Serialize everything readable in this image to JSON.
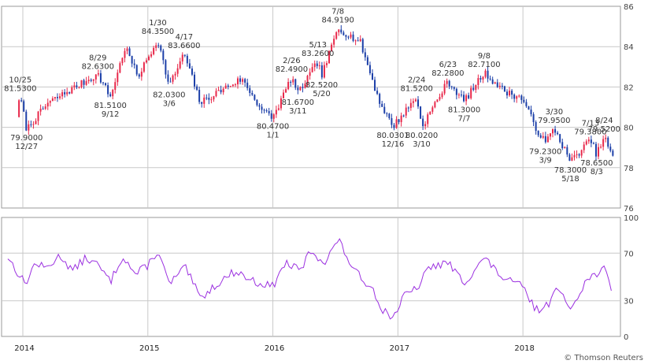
{
  "colors": {
    "up": "#e8284a",
    "down": "#1c3fa8",
    "indicator": "#9b30e0",
    "grid": "#c8c8c8",
    "frame": "#9a9a9a"
  },
  "credit": "© Thomson Reuters",
  "chart_data": [
    {
      "type": "candlestick",
      "title": "",
      "ylim": [
        76,
        86
      ],
      "y_ticks": [
        "76",
        "78",
        "80",
        "82",
        "84",
        "86"
      ],
      "x_labels": [
        "2014",
        "2015",
        "2016",
        "2017",
        "2018"
      ],
      "grid": true,
      "anchors": [
        {
          "t": 2013.95,
          "v": 80.6
        },
        {
          "t": 2013.98,
          "v": 81.53
        },
        {
          "t": 2014.03,
          "v": 79.9
        },
        {
          "t": 2014.2,
          "v": 81.2
        },
        {
          "t": 2014.45,
          "v": 82.1
        },
        {
          "t": 2014.6,
          "v": 82.63
        },
        {
          "t": 2014.7,
          "v": 81.51
        },
        {
          "t": 2014.82,
          "v": 84.0
        },
        {
          "t": 2014.92,
          "v": 82.5
        },
        {
          "t": 2015.08,
          "v": 84.35
        },
        {
          "t": 2015.17,
          "v": 82.03
        },
        {
          "t": 2015.29,
          "v": 83.66
        },
        {
          "t": 2015.42,
          "v": 81.2
        },
        {
          "t": 2015.6,
          "v": 81.9
        },
        {
          "t": 2015.75,
          "v": 82.4
        },
        {
          "t": 2015.92,
          "v": 80.8
        },
        {
          "t": 2016.0,
          "v": 80.47
        },
        {
          "t": 2016.15,
          "v": 82.49
        },
        {
          "t": 2016.2,
          "v": 81.67
        },
        {
          "t": 2016.36,
          "v": 83.26
        },
        {
          "t": 2016.39,
          "v": 82.52
        },
        {
          "t": 2016.52,
          "v": 84.919
        },
        {
          "t": 2016.7,
          "v": 84.2
        },
        {
          "t": 2016.85,
          "v": 81.3
        },
        {
          "t": 2016.96,
          "v": 80.03
        },
        {
          "t": 2017.15,
          "v": 81.52
        },
        {
          "t": 2017.19,
          "v": 80.02
        },
        {
          "t": 2017.4,
          "v": 82.28
        },
        {
          "t": 2017.53,
          "v": 81.3
        },
        {
          "t": 2017.69,
          "v": 82.71
        },
        {
          "t": 2017.85,
          "v": 81.8
        },
        {
          "t": 2018.0,
          "v": 81.4
        },
        {
          "t": 2018.1,
          "v": 80.0
        },
        {
          "t": 2018.18,
          "v": 79.23
        },
        {
          "t": 2018.25,
          "v": 79.95
        },
        {
          "t": 2018.38,
          "v": 78.3
        },
        {
          "t": 2018.54,
          "v": 79.38
        },
        {
          "t": 2018.59,
          "v": 78.65
        },
        {
          "t": 2018.65,
          "v": 79.52
        },
        {
          "t": 2018.72,
          "v": 78.5
        }
      ],
      "annotations": [
        {
          "date": "10/25",
          "value": "81.5300",
          "t": 2013.98,
          "v": 81.53
        },
        {
          "date": "12/27",
          "value": "79.9000",
          "t": 2014.03,
          "v": 79.9
        },
        {
          "date": "8/29",
          "value": "82.6300",
          "t": 2014.6,
          "v": 82.63
        },
        {
          "date": "9/12",
          "value": "81.5100",
          "t": 2014.7,
          "v": 81.51
        },
        {
          "date": "1/30",
          "value": "84.3500",
          "t": 2015.08,
          "v": 84.35
        },
        {
          "date": "3/6",
          "value": "82.0300",
          "t": 2015.17,
          "v": 82.03
        },
        {
          "date": "4/17",
          "value": "83.6600",
          "t": 2015.29,
          "v": 83.66
        },
        {
          "date": "1/1",
          "value": "80.4700",
          "t": 2016.0,
          "v": 80.47
        },
        {
          "date": "2/26",
          "value": "82.4900",
          "t": 2016.15,
          "v": 82.49
        },
        {
          "date": "3/11",
          "value": "81.6700",
          "t": 2016.2,
          "v": 81.67
        },
        {
          "date": "5/13",
          "value": "83.2600",
          "t": 2016.36,
          "v": 83.26
        },
        {
          "date": "5/20",
          "value": "82.5200",
          "t": 2016.39,
          "v": 82.52
        },
        {
          "date": "7/8",
          "value": "84.9190",
          "t": 2016.52,
          "v": 84.919
        },
        {
          "date": "12/16",
          "value": "80.0301",
          "t": 2016.96,
          "v": 80.03
        },
        {
          "date": "2/24",
          "value": "81.5200",
          "t": 2017.15,
          "v": 81.52
        },
        {
          "date": "3/10",
          "value": "80.0200",
          "t": 2017.19,
          "v": 80.02
        },
        {
          "date": "6/23",
          "value": "82.2800",
          "t": 2017.4,
          "v": 82.28
        },
        {
          "date": "7/7",
          "value": "81.3000",
          "t": 2017.53,
          "v": 81.3
        },
        {
          "date": "9/8",
          "value": "82.7100",
          "t": 2017.69,
          "v": 82.71
        },
        {
          "date": "3/9",
          "value": "79.2300",
          "t": 2018.18,
          "v": 79.23
        },
        {
          "date": "3/30",
          "value": "79.9500",
          "t": 2018.25,
          "v": 79.95
        },
        {
          "date": "5/18",
          "value": "78.3000",
          "t": 2018.38,
          "v": 78.3
        },
        {
          "date": "7/13",
          "value": "79.3800",
          "t": 2018.54,
          "v": 79.38
        },
        {
          "date": "8/3",
          "value": "78.6500",
          "t": 2018.59,
          "v": 78.65
        },
        {
          "date": "8/24",
          "value": "79.5200",
          "t": 2018.65,
          "v": 79.52
        }
      ]
    },
    {
      "type": "line",
      "title": "",
      "ylim": [
        0,
        100
      ],
      "y_ticks": [
        "0",
        "30",
        "70",
        "100"
      ],
      "grid": true,
      "anchors": [
        {
          "t": 2013.88,
          "v": 67
        },
        {
          "t": 2013.95,
          "v": 55
        },
        {
          "t": 2014.02,
          "v": 44
        },
        {
          "t": 2014.1,
          "v": 62
        },
        {
          "t": 2014.18,
          "v": 57
        },
        {
          "t": 2014.3,
          "v": 68
        },
        {
          "t": 2014.4,
          "v": 55
        },
        {
          "t": 2014.5,
          "v": 66
        },
        {
          "t": 2014.6,
          "v": 60
        },
        {
          "t": 2014.7,
          "v": 46
        },
        {
          "t": 2014.8,
          "v": 68
        },
        {
          "t": 2014.9,
          "v": 52
        },
        {
          "t": 2015.0,
          "v": 60
        },
        {
          "t": 2015.08,
          "v": 72
        },
        {
          "t": 2015.17,
          "v": 44
        },
        {
          "t": 2015.3,
          "v": 58
        },
        {
          "t": 2015.42,
          "v": 32
        },
        {
          "t": 2015.55,
          "v": 44
        },
        {
          "t": 2015.7,
          "v": 55
        },
        {
          "t": 2015.85,
          "v": 46
        },
        {
          "t": 2016.0,
          "v": 42
        },
        {
          "t": 2016.1,
          "v": 62
        },
        {
          "t": 2016.22,
          "v": 55
        },
        {
          "t": 2016.3,
          "v": 72
        },
        {
          "t": 2016.42,
          "v": 62
        },
        {
          "t": 2016.52,
          "v": 82
        },
        {
          "t": 2016.65,
          "v": 55
        },
        {
          "t": 2016.8,
          "v": 40
        },
        {
          "t": 2016.88,
          "v": 22
        },
        {
          "t": 2016.96,
          "v": 16
        },
        {
          "t": 2017.05,
          "v": 34
        },
        {
          "t": 2017.15,
          "v": 40
        },
        {
          "t": 2017.25,
          "v": 58
        },
        {
          "t": 2017.4,
          "v": 62
        },
        {
          "t": 2017.53,
          "v": 45
        },
        {
          "t": 2017.69,
          "v": 66
        },
        {
          "t": 2017.85,
          "v": 48
        },
        {
          "t": 2018.0,
          "v": 42
        },
        {
          "t": 2018.1,
          "v": 22
        },
        {
          "t": 2018.2,
          "v": 26
        },
        {
          "t": 2018.25,
          "v": 42
        },
        {
          "t": 2018.38,
          "v": 24
        },
        {
          "t": 2018.5,
          "v": 46
        },
        {
          "t": 2018.65,
          "v": 58
        },
        {
          "t": 2018.72,
          "v": 32
        }
      ]
    }
  ]
}
